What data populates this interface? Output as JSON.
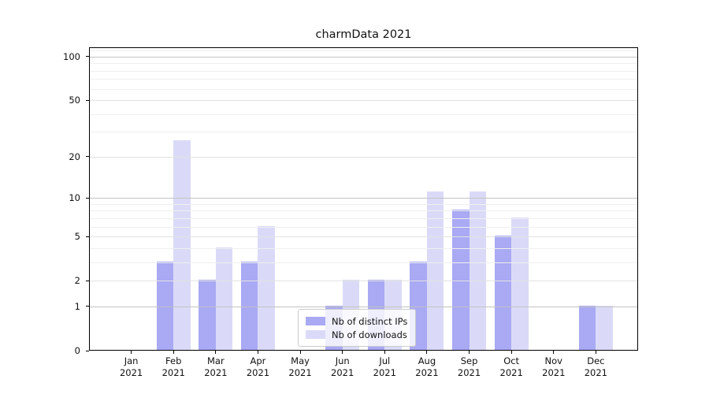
{
  "title": "charmData 2021",
  "chart_data": {
    "type": "bar",
    "title": "charmData 2021",
    "categories": [
      "Jan 2021",
      "Feb 2021",
      "Mar 2021",
      "Apr 2021",
      "May 2021",
      "Jun 2021",
      "Jul 2021",
      "Aug 2021",
      "Sep 2021",
      "Oct 2021",
      "Nov 2021",
      "Dec 2021"
    ],
    "series": [
      {
        "name": "Nb of distinct IPs",
        "color": "#a9a9f4",
        "values": [
          0,
          3,
          2,
          3,
          0,
          1,
          2,
          3,
          8,
          5,
          0,
          1
        ]
      },
      {
        "name": "Nb of downloads",
        "color": "#dadaf8",
        "values": [
          0,
          26,
          4,
          6,
          0,
          2,
          2,
          11,
          11,
          7,
          0,
          1
        ]
      }
    ],
    "xlabel": "",
    "ylabel": "",
    "y_axis": {
      "scale": "log1p",
      "major_ticks": [
        0,
        1,
        2,
        5,
        10,
        20,
        50,
        100
      ],
      "decade_ticks": [
        1,
        10,
        100
      ],
      "minor_ticks": [
        3,
        4,
        6,
        7,
        8,
        9,
        30,
        40,
        60,
        70,
        80,
        90,
        110
      ],
      "top_value": 116
    },
    "grid": true,
    "legend": {
      "position": "lower center",
      "entries": [
        "Nb of distinct IPs",
        "Nb of downloads"
      ]
    },
    "colors": {
      "axis": "#000000",
      "grid_decade": "#c3c3c3",
      "grid_mid": "#e2e2e2",
      "grid_minor": "#efefef",
      "legend_border": "#cbcbcb",
      "background": "#ffffff"
    }
  }
}
